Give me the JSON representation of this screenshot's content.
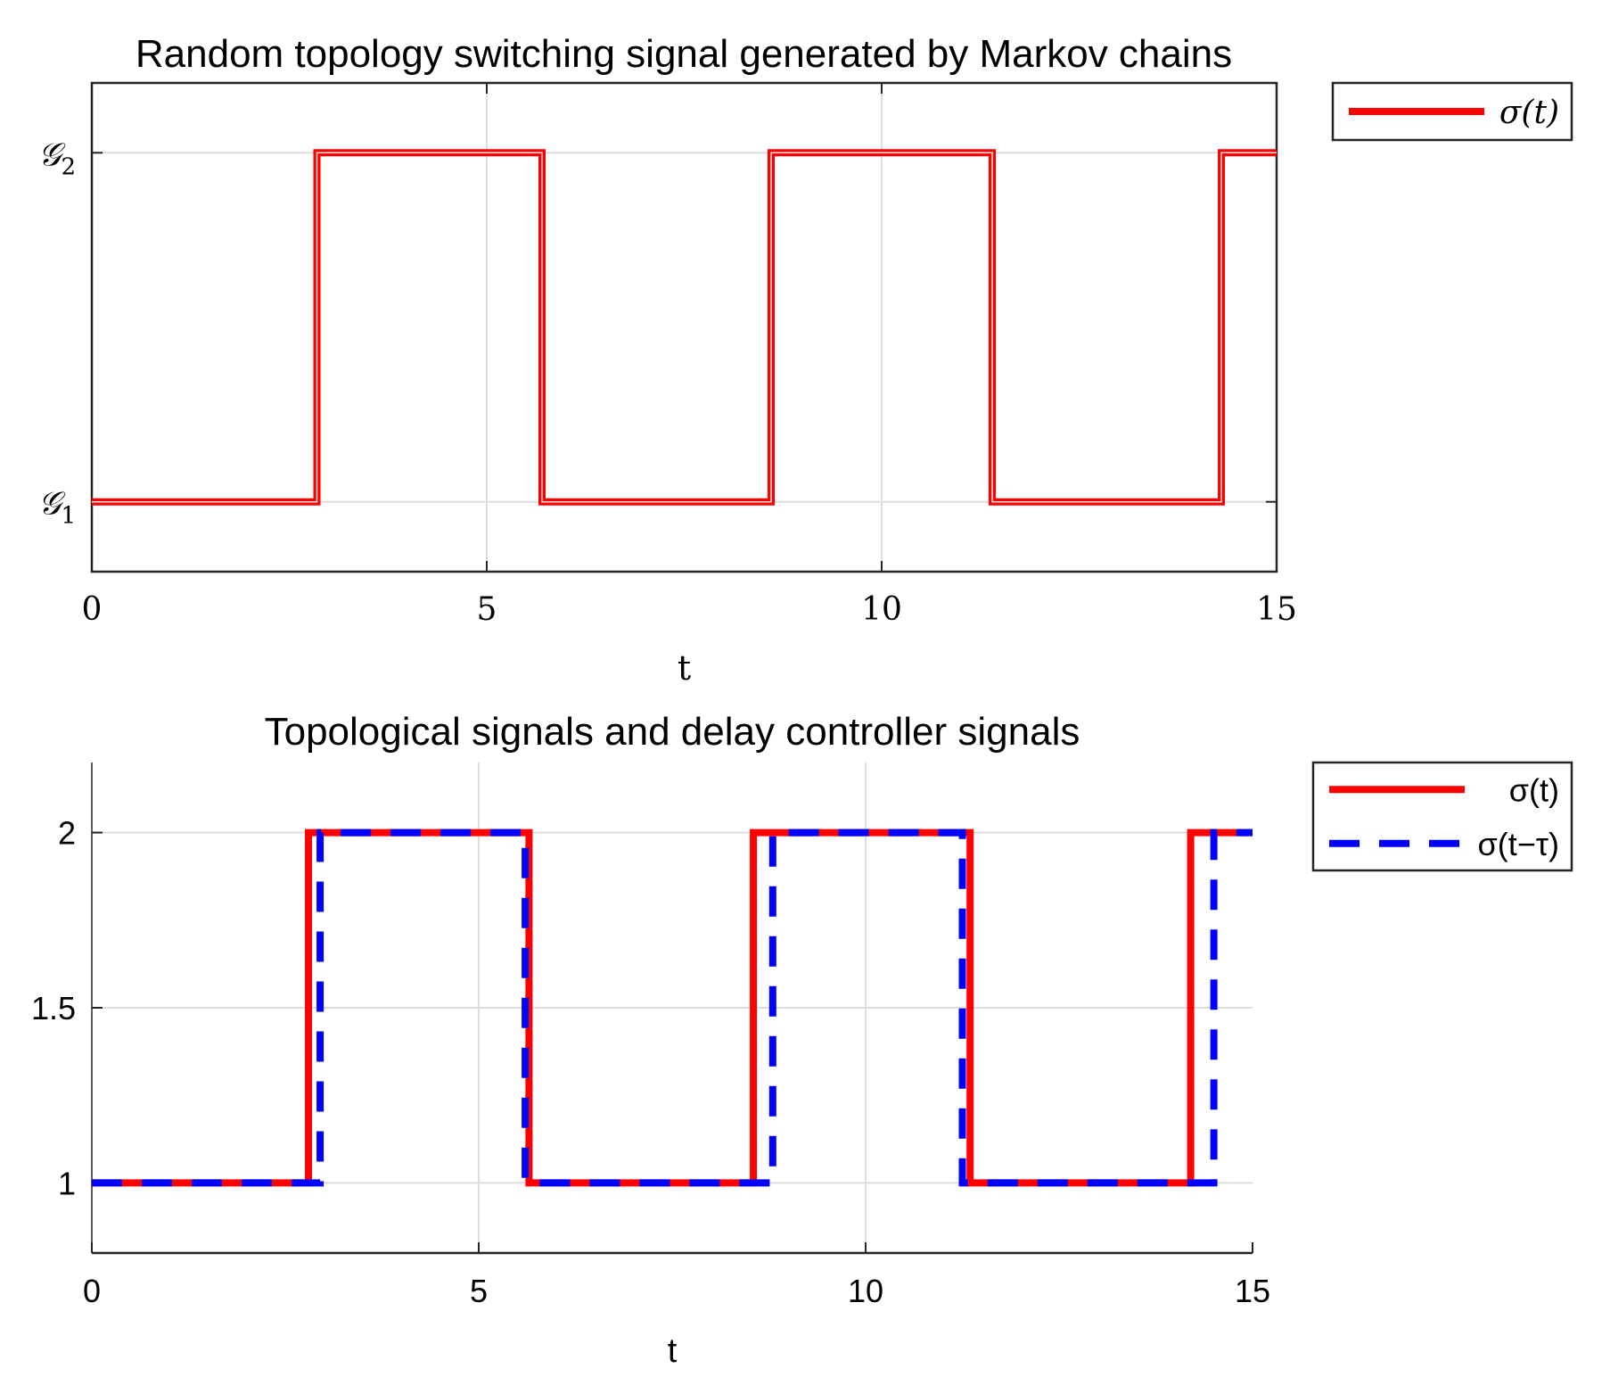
{
  "chart_data": [
    {
      "type": "line",
      "step": true,
      "title": "Random topology switching signal generated by Markov chains",
      "xlabel": "t",
      "ylabel": "",
      "xlim": [
        0,
        15
      ],
      "ylim": [
        0.8,
        2.2
      ],
      "xticks": [
        0,
        5,
        10,
        15
      ],
      "xtick_labels": [
        "0",
        "5",
        "10",
        "15"
      ],
      "yticks": [
        1,
        2
      ],
      "ytick_labels": [
        {
          "base": "𝒢",
          "sub": "1"
        },
        {
          "base": "𝒢",
          "sub": "2"
        }
      ],
      "grid": true,
      "legend_position": "outside-top-right",
      "series": [
        {
          "name": "σ(t)",
          "color": "#ff0000",
          "style": "solid",
          "x": [
            0,
            2.85,
            5.7,
            8.6,
            11.4,
            14.3,
            15
          ],
          "values": [
            1,
            2,
            1,
            2,
            1,
            2,
            2
          ]
        }
      ]
    },
    {
      "type": "line",
      "step": true,
      "title": "Topological signals and delay controller signals",
      "xlabel": "t",
      "ylabel": "",
      "xlim": [
        0,
        15
      ],
      "ylim": [
        0.8,
        2.2
      ],
      "xticks": [
        0,
        5,
        10,
        15
      ],
      "xtick_labels": [
        "0",
        "5",
        "10",
        "15"
      ],
      "yticks": [
        1,
        1.5,
        2
      ],
      "ytick_labels": [
        "1",
        "1.5",
        "2"
      ],
      "grid": true,
      "legend_position": "outside-top-right",
      "series": [
        {
          "name": "σ(t)",
          "color": "#ff0000",
          "style": "solid",
          "x": [
            0,
            2.8,
            5.65,
            8.55,
            11.35,
            14.2,
            15
          ],
          "values": [
            1,
            2,
            1,
            2,
            1,
            2,
            2
          ]
        },
        {
          "name": "σ(t−τ)",
          "color": "#0000ff",
          "style": "dashed",
          "x": [
            0,
            2.95,
            5.6,
            8.8,
            11.25,
            14.5,
            15
          ],
          "values": [
            1,
            2,
            1,
            2,
            1,
            2,
            2
          ]
        }
      ]
    }
  ]
}
